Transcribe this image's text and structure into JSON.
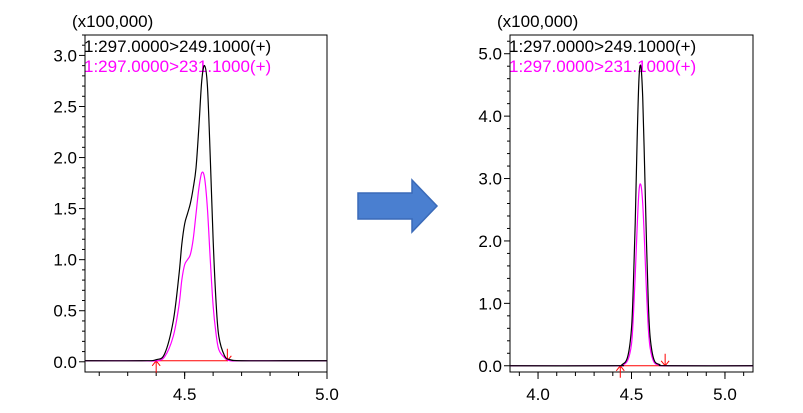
{
  "colors": {
    "trace_main": "#000000",
    "trace_second": "#ff00ff",
    "baseline": "#ff0000",
    "arrow": "#4a7fd0",
    "axis": "#000000"
  },
  "arrow": {
    "icon": "right-arrow-icon"
  },
  "chart_data": [
    {
      "type": "line",
      "y_multiplier_label": "(x100,000)",
      "xlim": [
        4.15,
        5.0
      ],
      "ylim": [
        -0.1,
        3.2
      ],
      "x_ticks": [
        4.5,
        5.0
      ],
      "x_tick_labels": [
        "4.5",
        "5.0"
      ],
      "y_ticks": [
        0.0,
        0.5,
        1.0,
        1.5,
        2.0,
        2.5,
        3.0
      ],
      "y_tick_labels": [
        "0.0",
        "0.5",
        "1.0",
        "1.5",
        "2.0",
        "2.5",
        "3.0"
      ],
      "series": [
        {
          "name": "1:297.0000>249.1000(+)",
          "color": "#000000",
          "x": [
            4.15,
            4.35,
            4.4,
            4.43,
            4.46,
            4.48,
            4.49,
            4.5,
            4.51,
            4.52,
            4.53,
            4.54,
            4.55,
            4.56,
            4.57,
            4.58,
            4.59,
            4.6,
            4.61,
            4.62,
            4.64,
            4.66,
            4.7,
            4.85,
            5.0
          ],
          "values": [
            0.01,
            0.01,
            0.02,
            0.08,
            0.4,
            0.85,
            1.15,
            1.35,
            1.45,
            1.55,
            1.7,
            1.9,
            2.3,
            2.75,
            2.9,
            2.7,
            2.0,
            1.2,
            0.6,
            0.25,
            0.06,
            0.02,
            0.01,
            0.01,
            0.01
          ]
        },
        {
          "name": "1:297.0000>231.1000(+)",
          "color": "#ff00ff",
          "x": [
            4.15,
            4.35,
            4.4,
            4.43,
            4.46,
            4.48,
            4.49,
            4.5,
            4.51,
            4.52,
            4.53,
            4.54,
            4.55,
            4.56,
            4.57,
            4.58,
            4.59,
            4.6,
            4.61,
            4.62,
            4.64,
            4.66,
            4.7,
            4.85,
            5.0
          ],
          "values": [
            0.01,
            0.01,
            0.01,
            0.05,
            0.25,
            0.55,
            0.8,
            0.95,
            1.0,
            1.05,
            1.2,
            1.45,
            1.7,
            1.85,
            1.8,
            1.5,
            1.0,
            0.55,
            0.28,
            0.12,
            0.04,
            0.01,
            0.01,
            0.01,
            0.01
          ]
        }
      ],
      "baseline": {
        "x_start": 4.4,
        "x_end": 4.65,
        "y": 0.01
      }
    },
    {
      "type": "line",
      "y_multiplier_label": "(x100,000)",
      "xlim": [
        3.85,
        5.15
      ],
      "ylim": [
        -0.1,
        5.3
      ],
      "x_ticks": [
        4.0,
        4.5,
        5.0
      ],
      "x_tick_labels": [
        "4.0",
        "4.5",
        "5.0"
      ],
      "y_ticks": [
        0.0,
        1.0,
        2.0,
        3.0,
        4.0,
        5.0
      ],
      "y_tick_labels": [
        "0.0",
        "1.0",
        "2.0",
        "3.0",
        "4.0",
        "5.0"
      ],
      "series": [
        {
          "name": "1:297.0000>249.1000(+)",
          "color": "#000000",
          "x": [
            3.85,
            4.4,
            4.45,
            4.48,
            4.5,
            4.51,
            4.52,
            4.53,
            4.54,
            4.55,
            4.56,
            4.57,
            4.58,
            4.59,
            4.6,
            4.62,
            4.65,
            4.7,
            5.15
          ],
          "values": [
            0.0,
            0.0,
            0.02,
            0.15,
            0.6,
            1.3,
            2.3,
            3.6,
            4.6,
            4.8,
            4.3,
            3.2,
            2.0,
            1.0,
            0.45,
            0.1,
            0.02,
            0.0,
            0.0
          ]
        },
        {
          "name": "1:297.0000>231.1000(+)",
          "color": "#ff00ff",
          "x": [
            3.85,
            4.4,
            4.45,
            4.48,
            4.5,
            4.51,
            4.52,
            4.53,
            4.54,
            4.55,
            4.56,
            4.57,
            4.58,
            4.59,
            4.6,
            4.62,
            4.65,
            4.7,
            5.15
          ],
          "values": [
            0.0,
            0.0,
            0.01,
            0.09,
            0.35,
            0.8,
            1.45,
            2.2,
            2.8,
            2.9,
            2.6,
            1.95,
            1.2,
            0.6,
            0.28,
            0.06,
            0.01,
            0.0,
            0.0
          ]
        }
      ],
      "baseline": {
        "x_start": 4.44,
        "x_end": 4.68,
        "y": 0.0
      }
    }
  ]
}
